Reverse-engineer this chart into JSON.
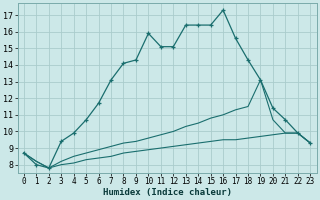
{
  "xlabel": "Humidex (Indice chaleur)",
  "background_color": "#cce8e8",
  "grid_color": "#aacccc",
  "line_color": "#1a6e6e",
  "xlim": [
    -0.5,
    23.5
  ],
  "ylim": [
    7.5,
    17.7
  ],
  "yticks": [
    8,
    9,
    10,
    11,
    12,
    13,
    14,
    15,
    16,
    17
  ],
  "xticks": [
    0,
    1,
    2,
    3,
    4,
    5,
    6,
    7,
    8,
    9,
    10,
    11,
    12,
    13,
    14,
    15,
    16,
    17,
    18,
    19,
    20,
    21,
    22,
    23
  ],
  "line1_x": [
    0,
    1,
    2,
    3,
    4,
    5,
    6,
    7,
    8,
    9,
    10,
    11,
    12,
    13,
    14,
    15,
    16,
    17,
    18,
    19,
    20,
    21,
    22,
    23
  ],
  "line1_y": [
    8.7,
    8.0,
    7.8,
    9.4,
    9.9,
    10.7,
    11.7,
    13.1,
    14.1,
    14.3,
    15.9,
    15.1,
    15.1,
    16.4,
    16.4,
    16.4,
    17.3,
    15.6,
    14.3,
    13.1,
    11.4,
    10.7,
    9.9,
    9.3
  ],
  "line2_x": [
    0,
    1,
    2,
    3,
    4,
    5,
    6,
    7,
    8,
    9,
    10,
    11,
    12,
    13,
    14,
    15,
    16,
    17,
    18,
    19,
    20,
    21,
    22,
    23
  ],
  "line2_y": [
    8.7,
    8.2,
    7.8,
    8.2,
    8.5,
    8.7,
    8.9,
    9.1,
    9.3,
    9.4,
    9.6,
    9.8,
    10.0,
    10.3,
    10.5,
    10.8,
    11.0,
    11.3,
    11.5,
    13.1,
    10.7,
    9.9,
    9.9,
    9.3
  ],
  "line3_x": [
    0,
    1,
    2,
    3,
    4,
    5,
    6,
    7,
    8,
    9,
    10,
    11,
    12,
    13,
    14,
    15,
    16,
    17,
    18,
    19,
    20,
    21,
    22,
    23
  ],
  "line3_y": [
    8.7,
    8.2,
    7.8,
    8.0,
    8.1,
    8.3,
    8.4,
    8.5,
    8.7,
    8.8,
    8.9,
    9.0,
    9.1,
    9.2,
    9.3,
    9.4,
    9.5,
    9.5,
    9.6,
    9.7,
    9.8,
    9.9,
    9.9,
    9.3
  ]
}
